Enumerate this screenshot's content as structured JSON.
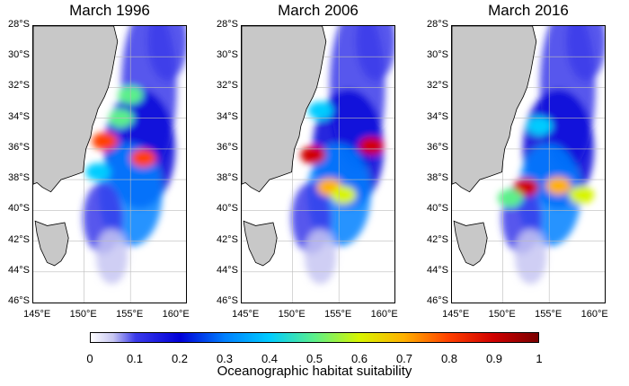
{
  "panels": [
    {
      "title": "March 1996",
      "hotspots": [
        [
          152.2,
          -35.5,
          0.85
        ],
        [
          156.4,
          -36.6,
          0.82
        ],
        [
          154.0,
          -34.0,
          0.55
        ],
        [
          155.0,
          -32.5,
          0.55
        ],
        [
          151.5,
          -37.5,
          0.42
        ]
      ]
    },
    {
      "title": "March 2006",
      "hotspots": [
        [
          152.2,
          -36.4,
          0.92
        ],
        [
          158.5,
          -35.8,
          0.9
        ],
        [
          154.0,
          -38.5,
          0.72
        ],
        [
          155.5,
          -39.0,
          0.6
        ],
        [
          153.0,
          -33.5,
          0.4
        ]
      ]
    },
    {
      "title": "March 2016",
      "hotspots": [
        [
          152.5,
          -38.5,
          0.9
        ],
        [
          156.0,
          -38.4,
          0.7
        ],
        [
          158.5,
          -39.0,
          0.65
        ],
        [
          150.8,
          -39.2,
          0.55
        ],
        [
          154.0,
          -34.5,
          0.4
        ]
      ]
    }
  ],
  "latitude_ticks": [
    "28°S",
    "30°S",
    "32°S",
    "34°S",
    "36°S",
    "38°S",
    "40°S",
    "42°S",
    "44°S",
    "46°S"
  ],
  "longitude_ticks": [
    "145°E",
    "150°E",
    "155°E",
    "160°E"
  ],
  "colorbar": {
    "ticks": [
      "0",
      "0.1",
      "0.2",
      "0.3",
      "0.4",
      "0.5",
      "0.6",
      "0.7",
      "0.8",
      "0.9",
      "1"
    ],
    "label": "Oceanographic habitat suitability",
    "range": [
      0,
      1
    ]
  },
  "map_extent": {
    "lon": [
      144.5,
      161
    ],
    "lat": [
      -46,
      -28
    ]
  },
  "colors": {
    "land": "#c8c8c8",
    "coast": "#000000",
    "grid": "#bcbcbc"
  }
}
